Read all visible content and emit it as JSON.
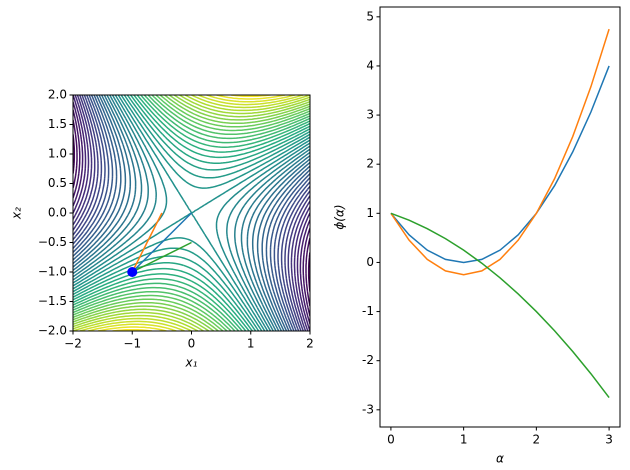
{
  "chart_data": [
    {
      "type": "contour",
      "xlabel": "x₁",
      "ylabel": "x₂",
      "xlim": [
        -2,
        2
      ],
      "ylim": [
        -2,
        2
      ],
      "xticks": [
        {
          "value": -2,
          "label": "−2"
        },
        {
          "value": -1,
          "label": "−1"
        },
        0,
        1,
        2
      ],
      "yticks": [
        {
          "value": -2,
          "label": "−2.0"
        },
        {
          "value": -1.5,
          "label": "−1.5"
        },
        {
          "value": -1,
          "label": "−1.0"
        },
        {
          "value": -0.5,
          "label": "−0.5"
        },
        {
          "value": 0,
          "label": "0.0"
        },
        {
          "value": 0.5,
          "label": "0.5"
        },
        {
          "value": 1,
          "label": "1.0"
        },
        {
          "value": 1.5,
          "label": "1.5"
        },
        {
          "value": 2,
          "label": "2.0"
        }
      ],
      "series": [
        {
          "color": "#1f77b4",
          "x": [
            -1,
            0
          ],
          "values": [
            -1,
            0
          ]
        },
        {
          "color": "#ff7f0e",
          "x": [
            -1,
            -0.5
          ],
          "values": [
            -1,
            0
          ]
        },
        {
          "color": "#2ca02c",
          "x": [
            -1,
            0
          ],
          "values": [
            -1,
            -0.5
          ]
        }
      ],
      "points": {
        "color": "#0000ff",
        "x": [
          -1
        ],
        "values": [
          -1
        ]
      }
    },
    {
      "type": "line",
      "xlabel": "α",
      "ylabel": "ϕ(α)",
      "xlim": [
        -0.15,
        3.15
      ],
      "ylim": [
        -3.35,
        5.2
      ],
      "xticks": [
        0,
        1,
        2,
        3
      ],
      "yticks": [
        -3,
        -2,
        -1,
        0,
        1,
        2,
        3,
        4,
        5
      ],
      "x": [
        0,
        0.25,
        0.5,
        0.75,
        1,
        1.25,
        1.5,
        1.75,
        2,
        2.25,
        2.5,
        2.75,
        3
      ],
      "series": [
        {
          "color": "#1f77b4",
          "values": [
            1,
            0.5625,
            0.25,
            0.0625,
            0,
            0.0625,
            0.25,
            0.5625,
            1,
            1.5625,
            2.25,
            3.0625,
            4
          ]
        },
        {
          "color": "#ff7f0e",
          "values": [
            1,
            0.453125,
            0.0625,
            -0.171875,
            -0.25,
            -0.171875,
            0.0625,
            0.453125,
            1,
            1.703125,
            2.5625,
            3.578125,
            4.75
          ]
        },
        {
          "color": "#2ca02c",
          "values": [
            1,
            0.859375,
            0.6875,
            0.484375,
            0.25,
            -0.015625,
            -0.3125,
            -0.640625,
            -1,
            -1.390625,
            -1.8125,
            -2.265625,
            -2.75
          ]
        }
      ]
    }
  ]
}
